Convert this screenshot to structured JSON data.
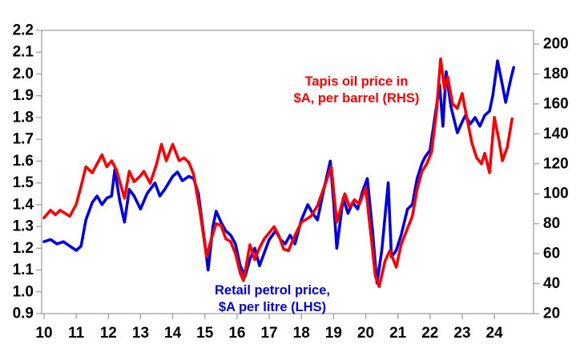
{
  "chart_data": {
    "type": "line",
    "title": "",
    "background_color": "#ffffff",
    "axis_color": "#a0a0a0",
    "tick_label_color": "#000000",
    "grid": false,
    "legend_position": "inline-annotations",
    "x_axis": {
      "label": "",
      "ticks": [
        10,
        11,
        12,
        13,
        14,
        15,
        16,
        17,
        18,
        19,
        20,
        21,
        22,
        23,
        24
      ],
      "tick_labels": [
        "10",
        "11",
        "12",
        "13",
        "14",
        "15",
        "16",
        "17",
        "18",
        "19",
        "20",
        "21",
        "22",
        "23",
        "24"
      ],
      "range": [
        9.9,
        25.2
      ]
    },
    "y_left": {
      "label": "",
      "range": [
        0.9,
        2.2
      ],
      "ticks": [
        0.9,
        1.0,
        1.1,
        1.2,
        1.3,
        1.4,
        1.5,
        1.6,
        1.7,
        1.8,
        1.9,
        2.0,
        2.1,
        2.2
      ],
      "tick_labels": [
        "0.9",
        "1.0",
        "1.1",
        "1.2",
        "1.3",
        "1.4",
        "1.5",
        "1.6",
        "1.7",
        "1.8",
        "1.9",
        "2.0",
        "2.1",
        "2.2"
      ]
    },
    "y_right": {
      "label": "",
      "range": [
        20,
        200
      ],
      "ticks": [
        20,
        40,
        60,
        80,
        100,
        120,
        140,
        160,
        180,
        200
      ],
      "tick_labels": [
        "20",
        "40",
        "60",
        "80",
        "100",
        "120",
        "140",
        "160",
        "180",
        "200"
      ]
    },
    "series": [
      {
        "name": "Retail petrol price, $A per litre (LHS)",
        "axis": "left",
        "color": "#0000e6",
        "x": [
          10.0,
          10.2,
          10.4,
          10.6,
          10.8,
          11.0,
          11.15,
          11.3,
          11.5,
          11.65,
          11.8,
          11.95,
          12.1,
          12.2,
          12.35,
          12.5,
          12.65,
          12.8,
          13.0,
          13.2,
          13.45,
          13.6,
          13.75,
          14.0,
          14.15,
          14.3,
          14.5,
          14.65,
          14.8,
          15.0,
          15.1,
          15.25,
          15.35,
          15.5,
          15.65,
          15.8,
          15.95,
          16.1,
          16.25,
          16.4,
          16.55,
          16.7,
          16.85,
          17.0,
          17.2,
          17.35,
          17.5,
          17.65,
          17.8,
          18.0,
          18.2,
          18.35,
          18.5,
          18.7,
          18.9,
          19.0,
          19.1,
          19.3,
          19.45,
          19.6,
          19.75,
          19.9,
          20.05,
          20.2,
          20.35,
          20.5,
          20.7,
          20.8,
          20.95,
          21.1,
          21.3,
          21.45,
          21.6,
          21.75,
          21.85,
          22.0,
          22.15,
          22.3,
          22.4,
          22.5,
          22.65,
          22.85,
          23.0,
          23.1,
          23.25,
          23.4,
          23.55,
          23.7,
          23.85,
          23.95,
          24.1,
          24.25,
          24.35,
          24.5,
          24.6
        ],
        "y": [
          1.23,
          1.24,
          1.22,
          1.23,
          1.21,
          1.19,
          1.21,
          1.33,
          1.41,
          1.44,
          1.4,
          1.43,
          1.44,
          1.56,
          1.42,
          1.32,
          1.47,
          1.44,
          1.38,
          1.45,
          1.5,
          1.44,
          1.47,
          1.53,
          1.55,
          1.51,
          1.53,
          1.52,
          1.45,
          1.22,
          1.1,
          1.3,
          1.37,
          1.32,
          1.28,
          1.26,
          1.22,
          1.12,
          1.07,
          1.15,
          1.2,
          1.12,
          1.18,
          1.24,
          1.28,
          1.24,
          1.22,
          1.26,
          1.22,
          1.33,
          1.4,
          1.36,
          1.33,
          1.47,
          1.6,
          1.42,
          1.2,
          1.43,
          1.36,
          1.41,
          1.38,
          1.46,
          1.52,
          1.3,
          1.04,
          1.19,
          1.5,
          1.16,
          1.19,
          1.26,
          1.38,
          1.4,
          1.52,
          1.59,
          1.62,
          1.65,
          1.8,
          1.95,
          1.76,
          2.01,
          1.85,
          1.73,
          1.78,
          1.81,
          1.77,
          1.8,
          1.76,
          1.81,
          1.83,
          1.9,
          2.06,
          1.95,
          1.87,
          1.97,
          2.03
        ]
      },
      {
        "name": "Tapis oil price in $A, per barrel (RHS)",
        "axis": "right",
        "color": "#ff0000",
        "x": [
          10.0,
          10.2,
          10.35,
          10.5,
          10.65,
          10.8,
          11.0,
          11.15,
          11.3,
          11.5,
          11.65,
          11.8,
          11.95,
          12.1,
          12.25,
          12.5,
          12.65,
          12.8,
          13.0,
          13.1,
          13.3,
          13.5,
          13.65,
          13.8,
          14.0,
          14.2,
          14.35,
          14.5,
          14.65,
          14.85,
          15.05,
          15.2,
          15.35,
          15.5,
          15.65,
          15.8,
          15.95,
          16.1,
          16.2,
          16.4,
          16.55,
          16.7,
          16.85,
          17.0,
          17.15,
          17.3,
          17.45,
          17.6,
          17.75,
          18.0,
          18.15,
          18.3,
          18.5,
          18.65,
          18.8,
          18.93,
          19.1,
          19.35,
          19.5,
          19.65,
          19.8,
          20.0,
          20.15,
          20.3,
          20.42,
          20.6,
          20.75,
          20.95,
          21.1,
          21.3,
          21.45,
          21.6,
          21.75,
          21.9,
          22.05,
          22.2,
          22.33,
          22.45,
          22.55,
          22.7,
          22.85,
          23.0,
          23.15,
          23.3,
          23.45,
          23.6,
          23.7,
          23.85,
          24.0,
          24.15,
          24.25,
          24.4,
          24.55
        ],
        "y": [
          84,
          89,
          86,
          89,
          87,
          85,
          93,
          105,
          118,
          114,
          120,
          126,
          118,
          122,
          116,
          97,
          115,
          108,
          112,
          115,
          107,
          120,
          133,
          122,
          133,
          122,
          124,
          121,
          113,
          88,
          58,
          70,
          80,
          79,
          70,
          68,
          60,
          47,
          42,
          66,
          56,
          64,
          70,
          74,
          78,
          72,
          63,
          62,
          70,
          81,
          83,
          85,
          92,
          101,
          110,
          118,
          81,
          100,
          91,
          96,
          93,
          104,
          75,
          45,
          38,
          55,
          62,
          51,
          66,
          77,
          85,
          103,
          115,
          120,
          128,
          155,
          190,
          170,
          178,
          160,
          157,
          167,
          150,
          134,
          124,
          120,
          127,
          114,
          151,
          135,
          122,
          131,
          150
        ]
      }
    ],
    "annotations": {
      "tapis": {
        "line1": "Tapis oil price in",
        "line2": "$A, per barrel (RHS)",
        "color": "#ff0000"
      },
      "petrol": {
        "line1": "Retail petrol price,",
        "line2": "$A per litre (LHS)",
        "color": "#0000e6"
      }
    }
  }
}
